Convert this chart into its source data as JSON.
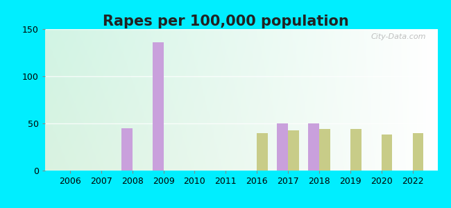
{
  "title": "Rapes per 100,000 population",
  "background_outer": "#00eeff",
  "years": [
    2006,
    2007,
    2008,
    2009,
    2010,
    2011,
    2016,
    2017,
    2018,
    2019,
    2020,
    2022
  ],
  "west_carthage": [
    0,
    0,
    45,
    136,
    0,
    0,
    0,
    50,
    50,
    0,
    0,
    0
  ],
  "us_average": [
    0,
    0,
    0,
    0,
    0,
    0,
    40,
    43,
    44,
    44,
    38,
    40
  ],
  "west_carthage_color": "#c9a0dc",
  "us_average_color": "#c8cc88",
  "ylim": [
    0,
    150
  ],
  "yticks": [
    0,
    50,
    100,
    150
  ],
  "bar_width": 0.35,
  "title_fontsize": 15,
  "tick_fontsize": 9,
  "legend_fontsize": 10,
  "watermark": "City-Data.com"
}
